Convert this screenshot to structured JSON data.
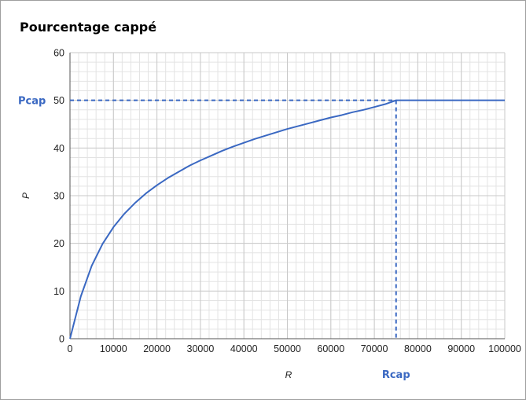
{
  "chart_data": {
    "type": "line",
    "title": "Pourcentage cappé",
    "xlabel": "R",
    "ylabel": "P",
    "xlim": [
      0,
      100000
    ],
    "ylim": [
      0,
      60
    ],
    "x_ticks": [
      0,
      10000,
      20000,
      30000,
      40000,
      50000,
      60000,
      70000,
      80000,
      90000,
      100000
    ],
    "y_ticks": [
      0,
      10,
      20,
      30,
      40,
      50,
      60
    ],
    "grid": true,
    "legend": "none",
    "series": [
      {
        "x": [
          0,
          2500,
          5000,
          7500,
          10000,
          12500,
          15000,
          17500,
          20000,
          22500,
          25000,
          27500,
          30000,
          32500,
          35000,
          37500,
          40000,
          42500,
          45000,
          47500,
          50000,
          52500,
          55000,
          57500,
          60000,
          62500,
          65000,
          67500,
          70000,
          72500,
          75000,
          80000,
          85000,
          90000,
          95000,
          100000
        ],
        "y": [
          0,
          8.9,
          15.3,
          19.9,
          23.4,
          26.2,
          28.5,
          30.5,
          32.2,
          33.7,
          35.0,
          36.3,
          37.4,
          38.4,
          39.4,
          40.3,
          41.1,
          41.9,
          42.6,
          43.3,
          44.0,
          44.6,
          45.2,
          45.8,
          46.4,
          46.9,
          47.5,
          48.0,
          48.6,
          49.2,
          50,
          50,
          50,
          50,
          50,
          50
        ]
      }
    ],
    "markers": {
      "pcap": {
        "label": "Pcap",
        "value": 50
      },
      "rcap": {
        "label": "Rcap",
        "value": 75000
      }
    },
    "colors": {
      "line": "#3a68c2",
      "marker_label": "#3a68c2",
      "grid_minor": "#e3e3e3",
      "grid_major": "#c9c9c9",
      "axis": "#555555"
    }
  }
}
